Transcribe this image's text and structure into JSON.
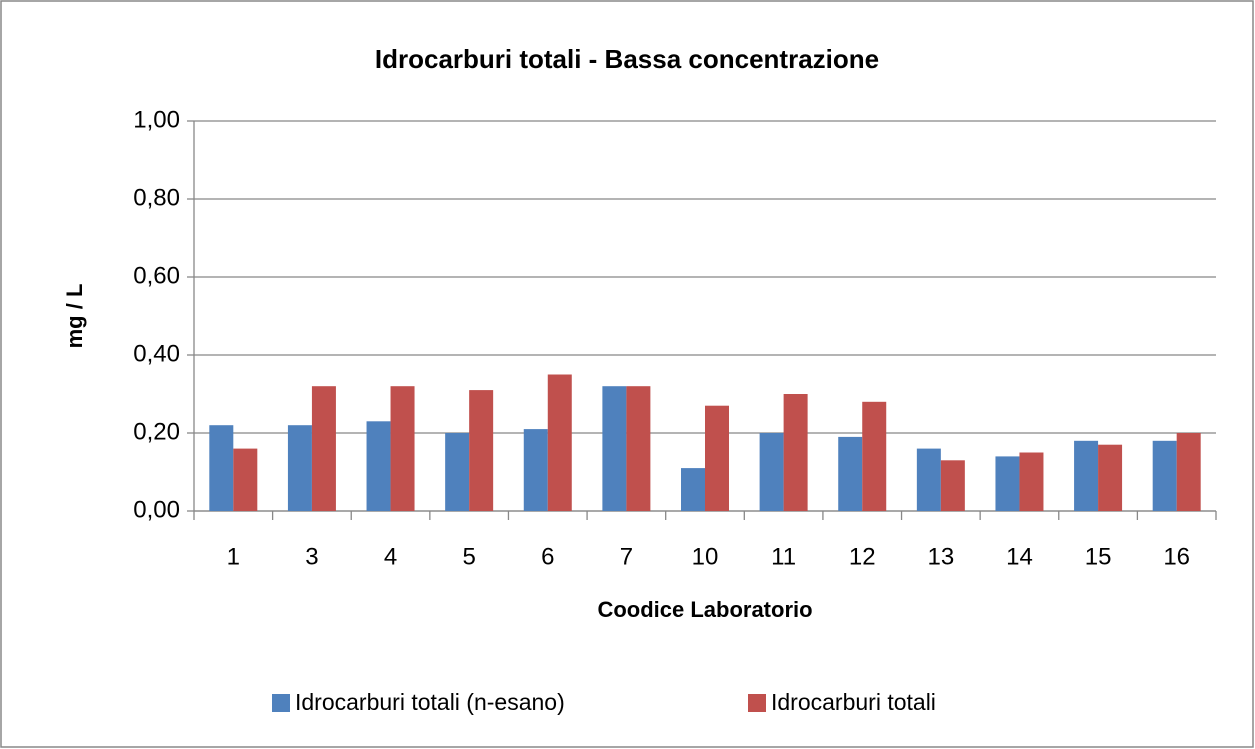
{
  "chart_data": {
    "type": "bar",
    "title": "Idrocarburi totali - Bassa concentrazione",
    "x_label": "Coodice Laboratorio",
    "y_label": "mg / L",
    "categories": [
      "1",
      "3",
      "4",
      "5",
      "6",
      "7",
      "10",
      "11",
      "12",
      "13",
      "14",
      "15",
      "16"
    ],
    "series": [
      {
        "name": "Idrocarburi totali (n-esano)",
        "color": "#4f81bd",
        "values": [
          0.22,
          0.22,
          0.23,
          0.2,
          0.21,
          0.32,
          0.11,
          0.2,
          0.19,
          0.16,
          0.14,
          0.18,
          0.18
        ]
      },
      {
        "name": "Idrocarburi totali",
        "color": "#c0504d",
        "values": [
          0.16,
          0.32,
          0.32,
          0.31,
          0.35,
          0.32,
          0.27,
          0.3,
          0.28,
          0.13,
          0.15,
          0.17,
          0.2
        ]
      }
    ],
    "ylim": [
      0,
      1
    ],
    "yticks": [
      {
        "value": 0,
        "label": "0,00"
      },
      {
        "value": 0.2,
        "label": "0,20"
      },
      {
        "value": 0.4,
        "label": "0,40"
      },
      {
        "value": 0.6,
        "label": "0,60"
      },
      {
        "value": 0.8,
        "label": "0,80"
      },
      {
        "value": 1,
        "label": "1,00"
      }
    ],
    "grid": true,
    "legend": "bottom"
  }
}
